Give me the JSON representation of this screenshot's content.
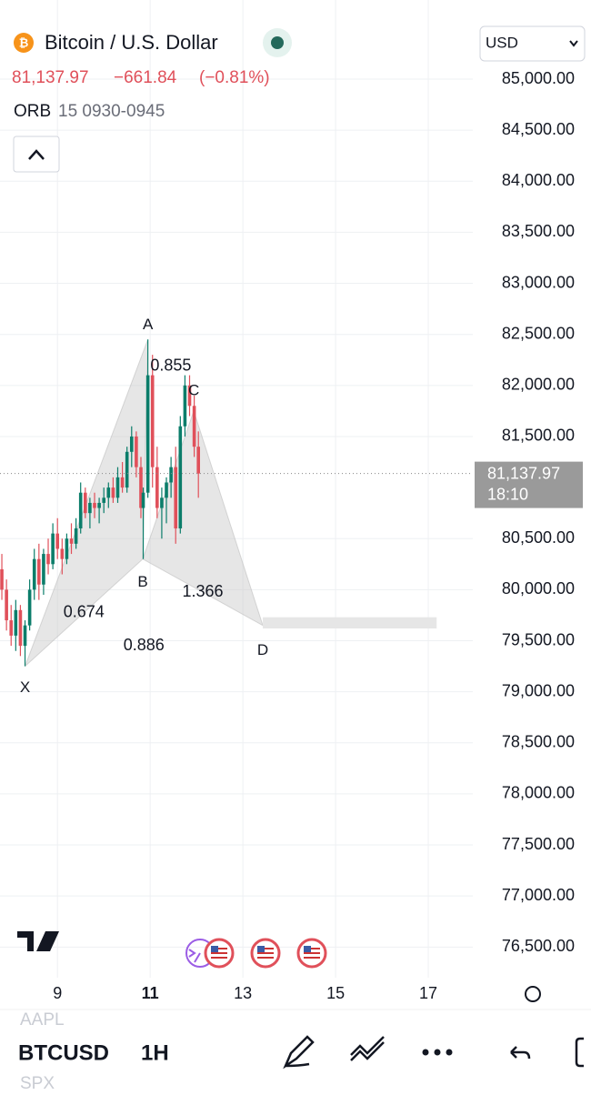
{
  "header": {
    "symbol_title": "Bitcoin / U.S. Dollar",
    "price": "81,137.97",
    "change": "−661.84",
    "change_pct": "(−0.81%)",
    "indicator_name": "ORB",
    "indicator_params": "15 0930-0945",
    "currency": "USD"
  },
  "chart_data": {
    "type": "candlestick",
    "x": [
      7.8,
      7.9,
      8.0,
      8.1,
      8.2,
      8.3,
      8.4,
      8.5,
      8.6,
      8.7,
      8.8,
      8.9,
      9.0,
      9.1,
      9.2,
      9.3,
      9.4,
      9.5,
      9.6,
      9.7,
      9.8,
      9.9,
      10.0,
      10.1,
      10.2,
      10.3,
      10.4,
      10.5,
      10.6,
      10.7,
      10.8,
      10.85,
      10.95,
      11.05,
      11.15,
      11.25,
      11.35,
      11.45,
      11.55,
      11.65,
      11.75,
      11.85,
      11.95,
      12.04
    ],
    "open": [
      80200,
      80000,
      79700,
      79550,
      79800,
      79450,
      79650,
      80000,
      80300,
      80050,
      80350,
      80250,
      80550,
      80400,
      80300,
      80500,
      80450,
      80600,
      80950,
      80750,
      80850,
      80800,
      80850,
      80900,
      81000,
      80900,
      81100,
      81000,
      81350,
      81500,
      81200,
      80800,
      80950,
      82100,
      81200,
      80800,
      80900,
      81050,
      81200,
      80600,
      81600,
      82000,
      81800,
      81400
    ],
    "high": [
      80350,
      80100,
      79850,
      79900,
      79850,
      79700,
      80100,
      80400,
      80450,
      80400,
      80500,
      80650,
      80700,
      80500,
      80550,
      80650,
      80700,
      81050,
      81000,
      80900,
      80950,
      80900,
      81000,
      81050,
      81100,
      81200,
      81250,
      81400,
      81600,
      81550,
      81300,
      81000,
      82450,
      82300,
      81400,
      81000,
      81100,
      81300,
      81400,
      81700,
      82100,
      82100,
      81900,
      81550
    ],
    "low": [
      79900,
      79600,
      79450,
      79400,
      79350,
      79250,
      79600,
      79900,
      79900,
      79950,
      80150,
      80200,
      80300,
      80150,
      80250,
      80350,
      80400,
      80550,
      80700,
      80600,
      80700,
      80650,
      80750,
      80800,
      80850,
      80850,
      80950,
      80950,
      81200,
      81100,
      80700,
      80300,
      80900,
      81000,
      80700,
      80500,
      80650,
      80900,
      80450,
      80550,
      81500,
      81700,
      81300,
      80900
    ],
    "close": [
      80000,
      79700,
      79550,
      79800,
      79450,
      79650,
      80000,
      80300,
      80050,
      80350,
      80250,
      80550,
      80400,
      80300,
      80500,
      80450,
      80600,
      80950,
      80750,
      80850,
      80800,
      80850,
      80900,
      81000,
      80900,
      81100,
      81000,
      81350,
      81500,
      81200,
      80800,
      80950,
      82100,
      81200,
      80800,
      80900,
      81050,
      81200,
      80600,
      81600,
      82000,
      81800,
      81400,
      81137.97
    ],
    "up_color": "#0b7d6a",
    "down_color": "#e0505a",
    "last_price": {
      "value": 81137.97,
      "label": "81,137.97",
      "countdown": "18:10"
    },
    "xlim": [
      7.76,
      17.96
    ],
    "ylim": [
      76200,
      85775
    ],
    "xticks": [
      9,
      11,
      13,
      15,
      17
    ],
    "yticks": [
      {
        "value": 85000,
        "label": "85,000.00"
      },
      {
        "value": 84500,
        "label": "84,500.00"
      },
      {
        "value": 84000,
        "label": "84,000.00"
      },
      {
        "value": 83500,
        "label": "83,500.00"
      },
      {
        "value": 83000,
        "label": "83,000.00"
      },
      {
        "value": 82500,
        "label": "82,500.00"
      },
      {
        "value": 82000,
        "label": "82,000.00"
      },
      {
        "value": 81500,
        "label": "81,500.00"
      },
      {
        "value": 80500,
        "label": "80,500.00"
      },
      {
        "value": 80000,
        "label": "80,000.00"
      },
      {
        "value": 79500,
        "label": "79,500.00"
      },
      {
        "value": 79000,
        "label": "79,000.00"
      },
      {
        "value": 78500,
        "label": "78,500.00"
      },
      {
        "value": 78000,
        "label": "78,000.00"
      },
      {
        "value": 77500,
        "label": "77,500.00"
      },
      {
        "value": 77000,
        "label": "77,000.00"
      },
      {
        "value": 76500,
        "label": "76,500.00"
      }
    ],
    "grid": true,
    "pattern": {
      "points": [
        {
          "label": "X",
          "x": 8.3,
          "y": 79250
        },
        {
          "label": "A",
          "x": 10.95,
          "y": 82450
        },
        {
          "label": "B",
          "x": 10.84,
          "y": 80300
        },
        {
          "label": "C",
          "x": 11.94,
          "y": 81750
        },
        {
          "label": "D",
          "x": 13.43,
          "y": 79650
        }
      ],
      "ratios": [
        "0.674",
        "0.855",
        "1.366",
        "0.886"
      ],
      "target_zone": {
        "x": [
          13.43,
          17.18
        ],
        "y": [
          79620,
          79730
        ]
      }
    }
  },
  "toolbar": {
    "watch_above": "AAPL",
    "symbol": "BTCUSD",
    "interval": "1H",
    "watch_below": "SPX"
  }
}
